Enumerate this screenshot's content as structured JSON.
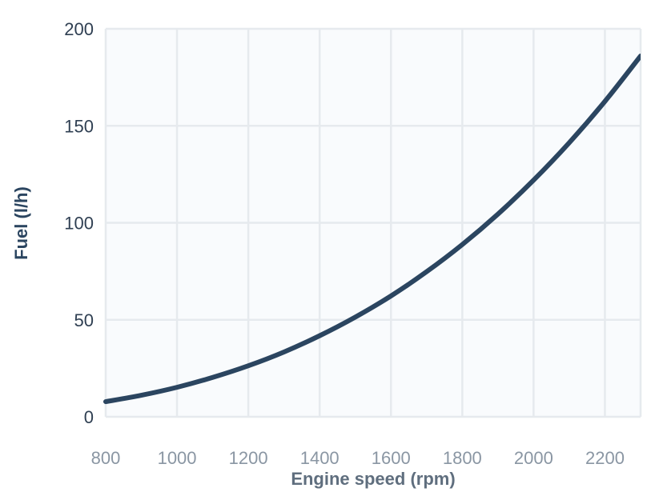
{
  "chart_data": {
    "type": "line",
    "xlabel": "Engine speed (rpm)",
    "ylabel": "Fuel (l/h)",
    "xlim": [
      800,
      2300
    ],
    "ylim": [
      0,
      200
    ],
    "xticks": [
      800,
      1000,
      1200,
      1400,
      1600,
      1800,
      2000,
      2200
    ],
    "yticks": [
      0,
      50,
      100,
      150,
      200
    ],
    "grid": true,
    "series": [
      {
        "color": "#2b4560",
        "x": [
          800,
          900,
          1000,
          1100,
          1200,
          1300,
          1400,
          1500,
          1600,
          1700,
          1800,
          1900,
          2000,
          2100,
          2200,
          2300
        ],
        "y": [
          7.8,
          11.1,
          15.2,
          20.3,
          26.3,
          33.4,
          41.8,
          51.4,
          62.3,
          74.8,
          88.8,
          104.5,
          122.0,
          141.3,
          162.6,
          186.0
        ]
      }
    ]
  }
}
